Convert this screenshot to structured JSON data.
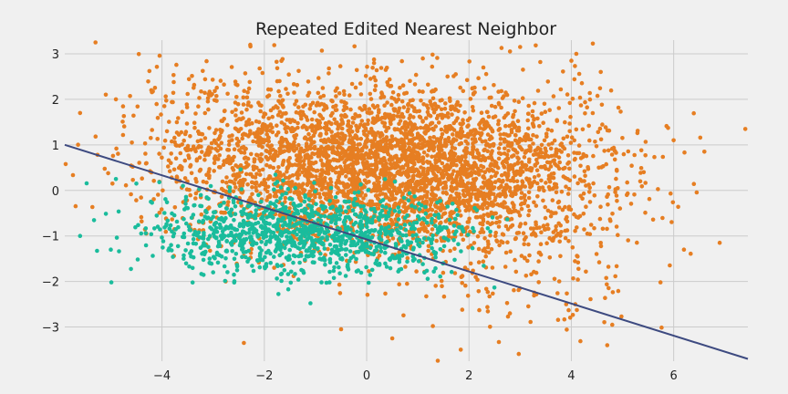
{
  "chart_data": {
    "type": "scatter",
    "title": "Repeated Edited Nearest Neighbor",
    "xlabel": "",
    "ylabel": "",
    "xlim": [
      -5.9,
      7.45
    ],
    "ylim": [
      -3.75,
      3.3
    ],
    "grid": true,
    "x_ticks": [
      -4,
      -2,
      0,
      2,
      4,
      6
    ],
    "y_ticks": [
      -3,
      -2,
      -1,
      0,
      1,
      2,
      3
    ],
    "x_tick_labels": [
      "−4",
      "−2",
      "0",
      "2",
      "4",
      "6"
    ],
    "y_tick_labels": [
      "−3",
      "−2",
      "−1",
      "0",
      "1",
      "2",
      "3"
    ],
    "colors": {
      "background": "#f0f0f0",
      "grid": "#cbcbcb",
      "class_majority": "#e67e22",
      "class_minority": "#1abc9c",
      "decision_line": "#3d4a80"
    },
    "decision_line": {
      "x": [
        -5.9,
        7.45
      ],
      "y": [
        1.0,
        -3.7
      ]
    },
    "series": [
      {
        "color": "#e67e22",
        "clusters": [
          {
            "count": 3200,
            "center": [
              0.4,
              0.5
            ],
            "spread": [
              1.9,
              0.85
            ]
          },
          {
            "count": 500,
            "center": [
              3.0,
              -0.2
            ],
            "spread": [
              1.3,
              1.3
            ]
          },
          {
            "count": 300,
            "center": [
              -2.5,
              1.3
            ],
            "spread": [
              1.2,
              0.8
            ]
          }
        ],
        "extra_points": [
          [
            -5.3,
            3.25
          ],
          [
            -5.6,
            1.7
          ],
          [
            7.4,
            1.35
          ],
          [
            6.6,
            0.85
          ],
          [
            6.2,
            -1.3
          ],
          [
            6.9,
            -1.15
          ],
          [
            4.8,
            -2.95
          ],
          [
            -2.4,
            -3.35
          ],
          [
            -0.5,
            -3.05
          ],
          [
            0.5,
            -3.25
          ],
          [
            2.8,
            -2.7
          ],
          [
            3.9,
            -2.5
          ],
          [
            6.0,
            1.1
          ],
          [
            -4.9,
            2.0
          ],
          [
            3.0,
            3.15
          ]
        ]
      },
      {
        "color": "#1abc9c",
        "clusters": [
          {
            "count": 900,
            "center": [
              -1.6,
              -0.95
            ],
            "spread": [
              1.3,
              0.45
            ]
          },
          {
            "count": 250,
            "center": [
              0.4,
              -1.0
            ],
            "spread": [
              0.9,
              0.4
            ]
          }
        ],
        "extra_points": [
          [
            -5.6,
            -1.0
          ],
          [
            -5.0,
            -1.3
          ],
          [
            -4.9,
            0.25
          ],
          [
            -4.5,
            0.15
          ],
          [
            -3.0,
            -1.8
          ],
          [
            1.5,
            -1.6
          ]
        ]
      }
    ]
  }
}
